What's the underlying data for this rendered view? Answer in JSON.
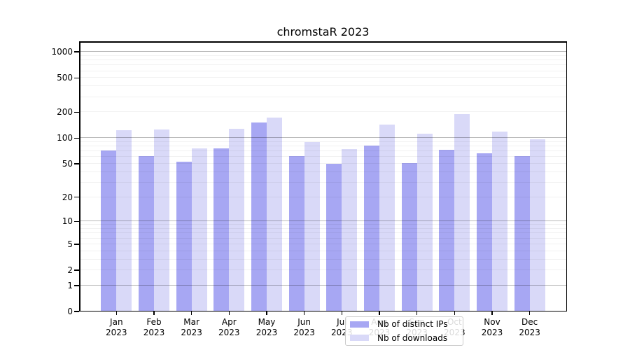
{
  "figure": {
    "title": "chromstaR 2023"
  },
  "chart_data": {
    "type": "bar",
    "title": "chromstaR 2023",
    "categories": [
      "Jan",
      "Feb",
      "Mar",
      "Apr",
      "May",
      "Jun",
      "Jul",
      "Aug",
      "Sep",
      "Oct",
      "Nov",
      "Dec"
    ],
    "year_label": "2023",
    "series": [
      {
        "name": "Nb of distinct IPs",
        "color": "#a7a7f3",
        "values": [
          71,
          62,
          53,
          76,
          152,
          62,
          50,
          81,
          51,
          73,
          67,
          62
        ]
      },
      {
        "name": "Nb of downloads",
        "color": "#d9d9f8",
        "values": [
          124,
          126,
          76,
          129,
          174,
          89,
          74,
          145,
          112,
          189,
          120,
          97
        ]
      }
    ],
    "xlabel": "",
    "ylabel": "",
    "y_ticks": [
      0,
      1,
      2,
      5,
      10,
      20,
      50,
      100,
      200,
      500,
      1000
    ],
    "y_scale": "log10(1+x)",
    "ylim": [
      0,
      1320
    ],
    "grid": "horizontal; minor lines at 2-9 per decade, darker lines at powers of 10",
    "legend_position": "bottom-center-inside",
    "colors": {
      "major_grid": "#b8b8b8",
      "minor_grid": "#ececec",
      "spine": "#000000",
      "background": "#ffffff"
    }
  }
}
